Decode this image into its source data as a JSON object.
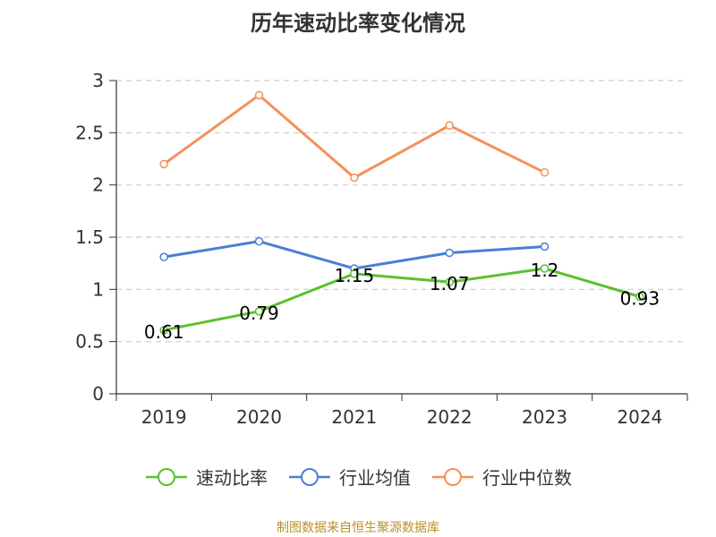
{
  "chart_data": {
    "type": "line",
    "title": "历年速动比率变化情况",
    "categories": [
      "2019",
      "2020",
      "2021",
      "2022",
      "2023",
      "2024"
    ],
    "ylim": [
      0,
      3
    ],
    "yticks": [
      0,
      0.5,
      1,
      1.5,
      2,
      2.5,
      3
    ],
    "ytick_labels": [
      "0",
      "0.5",
      "1",
      "1.5",
      "2",
      "2.5",
      "3"
    ],
    "grid": true,
    "legend_position": "bottom",
    "series": [
      {
        "name": "速动比率",
        "color": "#5cc02f",
        "values": [
          0.61,
          0.79,
          1.15,
          1.07,
          1.2,
          0.93
        ],
        "labels": [
          "0.61",
          "0.79",
          "1.15",
          "1.07",
          "1.2",
          "0.93"
        ]
      },
      {
        "name": "行业均值",
        "color": "#4a7ed8",
        "values": [
          1.31,
          1.46,
          1.2,
          1.35,
          1.41,
          null
        ]
      },
      {
        "name": "行业中位数",
        "color": "#f5905a",
        "values": [
          2.2,
          2.86,
          2.07,
          2.57,
          2.12,
          null
        ]
      }
    ]
  },
  "source": "制图数据来自恒生聚源数据库"
}
